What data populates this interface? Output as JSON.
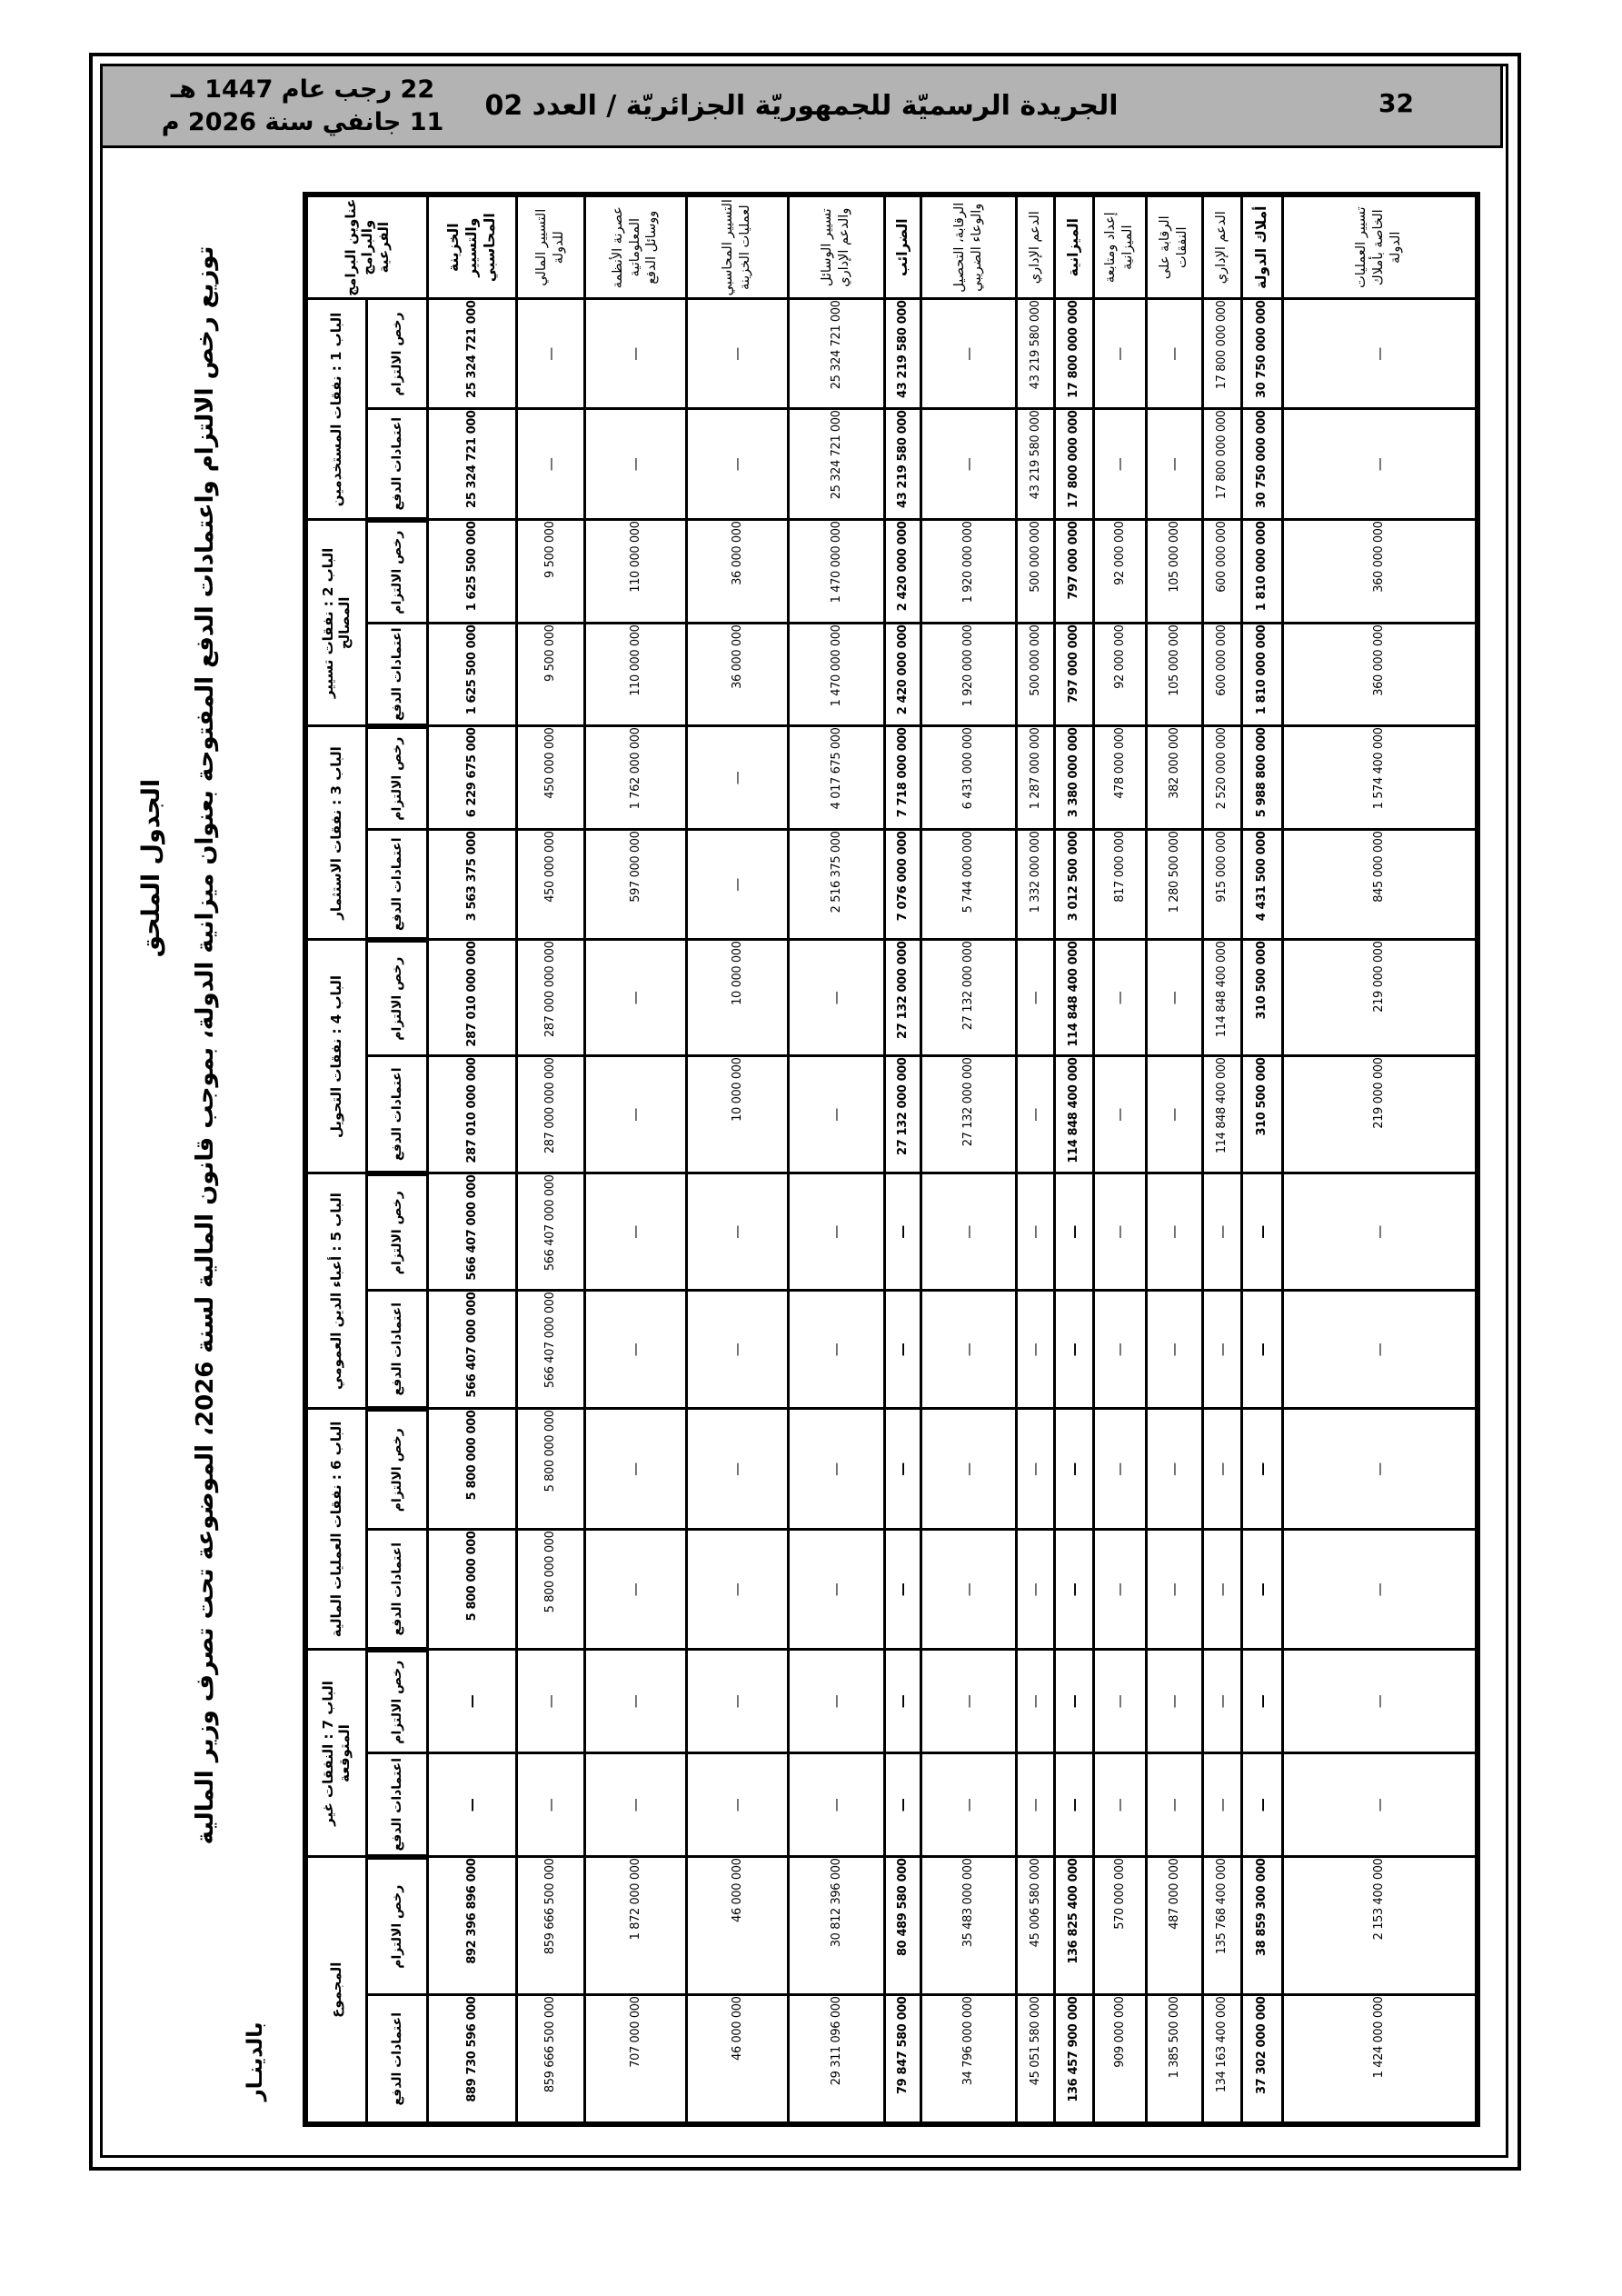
{
  "page": {
    "number": "32",
    "journal_title": "الجريدة الرسميّة للجمهوريّة الجزائريّة / العدد 02",
    "date_hijri": "22 رجب عام 1447 هـ",
    "date_gregorian": "11 جانفي سنة 2026 م"
  },
  "annex": {
    "title": "الجدول الملحق",
    "subtitle": "توزيع رخص الالتزام واعتمادات الدفع المفتوحة بعنوان ميزانية الدولة، بموجب قانون المالية لسنة 2026، الموضوعة تحت تصرف وزير المالية",
    "currency_note": "بالدينـار"
  },
  "table": {
    "corner_header": "عناوين البرامج والبرامج الفرعية",
    "commitment_label": "رخص الالتزام",
    "payment_label": "اعتمادات الدفع",
    "chapters": [
      "الباب 1 : نفقات المستخدمين",
      "الباب 2 : نفقات تسيير المصالح",
      "الباب 3 : نفقات الاستثمار",
      "الباب 4 : نفقات التحويل",
      "الباب 5 : أعباء الدين العمومي",
      "الباب 6 : نفقات العمليات المالية",
      "الباب 7 : النفقات غير المتوقعة",
      "المجموع"
    ],
    "programs": [
      {
        "name": "الخزينة والتسيير المحاسبي",
        "bold": true,
        "values": [
          "25 324 721 000",
          "25 324 721 000",
          "1 625 500 000",
          "1 625 500 000",
          "6 229 675 000",
          "3 563 375 000",
          "287 010 000 000",
          "287 010 000 000",
          "566 407 000 000",
          "566 407 000 000",
          "5 800 000 000",
          "5 800 000 000",
          "—",
          "—",
          "892 396 896 000",
          "889 730 596 000"
        ]
      },
      {
        "name": "التسيير المالي للدولة",
        "bold": false,
        "values": [
          "—",
          "—",
          "9 500 000",
          "9 500 000",
          "450 000 000",
          "450 000 000",
          "287 000 000 000",
          "287 000 000 000",
          "566 407 000 000",
          "566 407 000 000",
          "5 800 000 000",
          "5 800 000 000",
          "—",
          "—",
          "859 666 500 000",
          "859 666 500 000"
        ]
      },
      {
        "name": "عصرنة الأنظمة المعلوماتية ووسائل الدفع",
        "bold": false,
        "values": [
          "—",
          "—",
          "110 000 000",
          "110 000 000",
          "1 762 000 000",
          "597 000 000",
          "—",
          "—",
          "—",
          "—",
          "—",
          "—",
          "—",
          "—",
          "1 872 000 000",
          "707 000 000"
        ]
      },
      {
        "name": "التسيير المحاسبي لعمليات الخزينة",
        "bold": false,
        "values": [
          "—",
          "—",
          "36 000 000",
          "36 000 000",
          "—",
          "—",
          "10 000 000",
          "10 000 000",
          "—",
          "—",
          "—",
          "—",
          "—",
          "—",
          "46 000 000",
          "46 000 000"
        ]
      },
      {
        "name": "تسيير الوسائل والدعم الإداري",
        "bold": false,
        "values": [
          "25 324 721 000",
          "25 324 721 000",
          "1 470 000 000",
          "1 470 000 000",
          "4 017 675 000",
          "2 516 375 000",
          "—",
          "—",
          "—",
          "—",
          "—",
          "—",
          "—",
          "—",
          "30 812 396 000",
          "29 311 096 000"
        ]
      },
      {
        "name": "الضرائب",
        "bold": true,
        "values": [
          "43 219 580 000",
          "43 219 580 000",
          "2 420 000 000",
          "2 420 000 000",
          "7 718 000 000",
          "7 076 000 000",
          "27 132 000 000",
          "27 132 000 000",
          "—",
          "—",
          "—",
          "—",
          "—",
          "—",
          "80 489 580 000",
          "79 847 580 000"
        ]
      },
      {
        "name": "الرقابة، التحصيل والوعاء الضريبي",
        "bold": false,
        "values": [
          "—",
          "—",
          "1 920 000 000",
          "1 920 000 000",
          "6 431 000 000",
          "5 744 000 000",
          "27 132 000 000",
          "27 132 000 000",
          "—",
          "—",
          "—",
          "—",
          "—",
          "—",
          "35 483 000 000",
          "34 796 000 000"
        ]
      },
      {
        "name": "الدعم الإداري",
        "bold": false,
        "values": [
          "43 219 580 000",
          "43 219 580 000",
          "500 000 000",
          "500 000 000",
          "1 287 000 000",
          "1 332 000 000",
          "—",
          "—",
          "—",
          "—",
          "—",
          "—",
          "—",
          "—",
          "45 006 580 000",
          "45 051 580 000"
        ]
      },
      {
        "name": "الميزانية",
        "bold": true,
        "values": [
          "17 800 000 000",
          "17 800 000 000",
          "797 000 000",
          "797 000 000",
          "3 380 000 000",
          "3 012 500 000",
          "114 848 400 000",
          "114 848 400 000",
          "—",
          "—",
          "—",
          "—",
          "—",
          "—",
          "136 825 400 000",
          "136 457 900 000"
        ]
      },
      {
        "name": "إعداد ومتابعة الميزانية",
        "bold": false,
        "values": [
          "—",
          "—",
          "92 000 000",
          "92 000 000",
          "478 000 000",
          "817 000 000",
          "—",
          "—",
          "—",
          "—",
          "—",
          "—",
          "—",
          "—",
          "570 000 000",
          "909 000 000"
        ]
      },
      {
        "name": "الرقابة على النفقات",
        "bold": false,
        "values": [
          "—",
          "—",
          "105 000 000",
          "105 000 000",
          "382 000 000",
          "1 280 500 000",
          "—",
          "—",
          "—",
          "—",
          "—",
          "—",
          "—",
          "—",
          "487 000 000",
          "1 385 500 000"
        ]
      },
      {
        "name": "الدعم الإداري",
        "bold": false,
        "values": [
          "17 800 000 000",
          "17 800 000 000",
          "600 000 000",
          "600 000 000",
          "2 520 000 000",
          "915 000 000",
          "114 848 400 000",
          "114 848 400 000",
          "—",
          "—",
          "—",
          "—",
          "—",
          "—",
          "135 768 400 000",
          "134 163 400 000"
        ]
      },
      {
        "name": "أملاك الدولة",
        "bold": true,
        "values": [
          "30 750 000 000",
          "30 750 000 000",
          "1 810 000 000",
          "1 810 000 000",
          "5 988 800 000",
          "4 431 500 000",
          "310 500 000",
          "310 500 000",
          "—",
          "—",
          "—",
          "—",
          "—",
          "—",
          "38 859 300 000",
          "37 302 000 000"
        ]
      },
      {
        "name": "تسيير العمليات الخاصة بأملاك الدولة",
        "bold": false,
        "values": [
          "—",
          "—",
          "360 000 000",
          "360 000 000",
          "1 574 400 000",
          "845 000 000",
          "219 000 000",
          "219 000 000",
          "—",
          "—",
          "—",
          "—",
          "—",
          "—",
          "2 153 400 000",
          "1 424 000 000"
        ]
      }
    ]
  }
}
